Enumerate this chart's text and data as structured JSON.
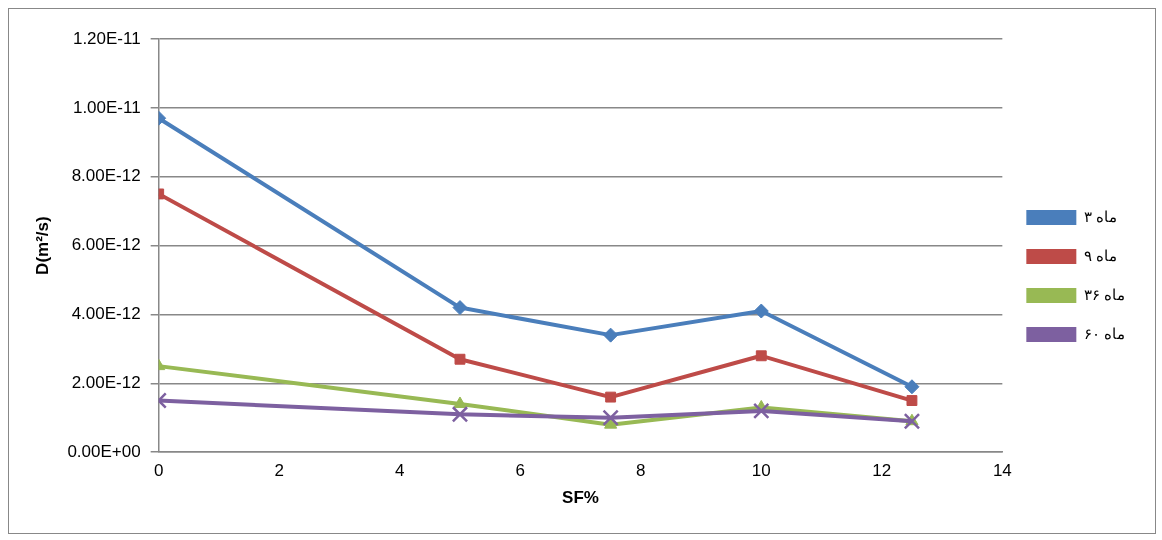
{
  "chart_data": {
    "type": "line",
    "xlabel": "SF%",
    "ylabel": "D(m²/s)",
    "x": [
      0,
      5,
      7.5,
      10,
      12.5
    ],
    "xlim": [
      0,
      14
    ],
    "xticks": [
      0,
      2,
      4,
      6,
      8,
      10,
      12,
      14
    ],
    "ylim": [
      0,
      1.2e-11
    ],
    "yticks": [
      {
        "value": 0,
        "label": "0.00E+00"
      },
      {
        "value": 2e-12,
        "label": "2.00E-12"
      },
      {
        "value": 4e-12,
        "label": "4.00E-12"
      },
      {
        "value": 6e-12,
        "label": "6.00E-12"
      },
      {
        "value": 8e-12,
        "label": "8.00E-12"
      },
      {
        "value": 1e-11,
        "label": "1.00E-11"
      },
      {
        "value": 1.2e-11,
        "label": "1.20E-11"
      }
    ],
    "grid": "y",
    "legend": "right",
    "series": [
      {
        "name": "۳ ماه",
        "color": "#4a7ebb",
        "marker": "diamond",
        "values": [
          9.7e-12,
          4.2e-12,
          3.4e-12,
          4.1e-12,
          1.9e-12
        ]
      },
      {
        "name": "۹ ماه",
        "color": "#be4b48",
        "marker": "square",
        "values": [
          7.5e-12,
          2.7e-12,
          1.6e-12,
          2.8e-12,
          1.5e-12
        ]
      },
      {
        "name": "۳۶ ماه",
        "color": "#98b954",
        "marker": "triangle",
        "values": [
          2.5e-12,
          1.4e-12,
          8e-13,
          1.3e-12,
          9e-13
        ]
      },
      {
        "name": "۶۰ ماه",
        "color": "#7d60a0",
        "marker": "cross",
        "values": [
          1.5e-12,
          1.1e-12,
          1e-12,
          1.2e-12,
          9e-13
        ]
      }
    ]
  }
}
